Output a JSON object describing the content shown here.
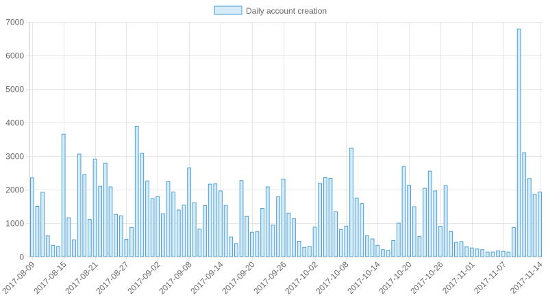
{
  "chart_data": {
    "type": "bar",
    "legend": {
      "label": "Daily account creation",
      "position": "top"
    },
    "colors": {
      "bar_fill": "#d6ebf8",
      "bar_stroke": "#4a9fd8"
    },
    "x_start": "2017-08-09",
    "x_end": "2017-11-14",
    "x_tick_labels": [
      "2017-08-09",
      "2017-08-15",
      "2017-08-21",
      "2017-08-27",
      "2017-09-02",
      "2017-09-08",
      "2017-09-14",
      "2017-09-20",
      "2017-09-26",
      "2017-10-02",
      "2017-10-08",
      "2017-10-14",
      "2017-10-20",
      "2017-10-26",
      "2017-11-01",
      "2017-11-07",
      "2017-11-14"
    ],
    "ylim": [
      0,
      7000
    ],
    "y_ticks": [
      0,
      1000,
      2000,
      3000,
      4000,
      5000,
      6000,
      7000
    ],
    "grid": true,
    "values": [
      2350,
      1500,
      1920,
      620,
      340,
      300,
      3650,
      1160,
      500,
      3060,
      2450,
      1110,
      2910,
      2100,
      2790,
      2080,
      1260,
      1220,
      520,
      870,
      3890,
      3080,
      2260,
      1730,
      1790,
      1280,
      2240,
      1930,
      1390,
      1540,
      2650,
      1610,
      820,
      1520,
      2160,
      2170,
      1960,
      1530,
      590,
      390,
      2270,
      1200,
      730,
      750,
      1440,
      2080,
      940,
      1790,
      2310,
      1300,
      1130,
      460,
      280,
      300,
      880,
      2190,
      2360,
      2340,
      1340,
      810,
      910,
      3240,
      1750,
      1580,
      620,
      530,
      340,
      210,
      190,
      480,
      1000,
      2690,
      2130,
      1490,
      600,
      2040,
      2550,
      1960,
      910,
      2120,
      750,
      430,
      450,
      290,
      260,
      230,
      210,
      140,
      140,
      170,
      160,
      140,
      870,
      6790,
      3100,
      2330,
      1860,
      1930
    ],
    "xlabel": "",
    "ylabel": ""
  }
}
